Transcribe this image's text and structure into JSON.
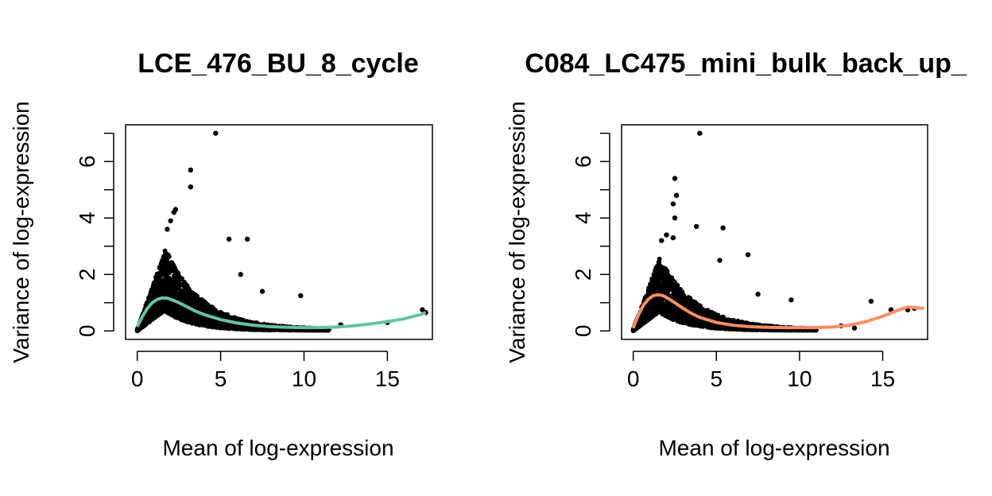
{
  "chart_data": [
    {
      "type": "scatter",
      "title": "LCE_476_BU_8_cycle",
      "xlabel": "Mean of log-expression",
      "ylabel": "Variance of log-expression",
      "xlim": [
        -0.7,
        17.7
      ],
      "ylim": [
        -0.3,
        7.3
      ],
      "x_ticks": [
        0,
        5,
        10,
        15
      ],
      "y_ticks": [
        0,
        1,
        2,
        3,
        4,
        5,
        6,
        7
      ],
      "y_tick_labels": [
        "0",
        "",
        "2",
        "",
        "4",
        "",
        "6",
        ""
      ],
      "grid": false,
      "points_color": "#000000",
      "trend_color": "#66c2a5",
      "cloud": {
        "x_max": 11.5,
        "peak_x": 1.7,
        "peak_upper": 2.9,
        "peak_lower": 0.75
      },
      "outliers": [
        [
          4.7,
          7.0
        ],
        [
          3.2,
          5.7
        ],
        [
          3.2,
          5.1
        ],
        [
          2.3,
          4.3
        ],
        [
          2.2,
          4.2
        ],
        [
          2.0,
          3.9
        ],
        [
          1.8,
          3.6
        ],
        [
          5.5,
          3.25
        ],
        [
          6.6,
          3.25
        ],
        [
          6.2,
          2.0
        ],
        [
          7.5,
          1.4
        ],
        [
          9.8,
          1.25
        ],
        [
          12.2,
          0.22
        ],
        [
          15.0,
          0.3
        ],
        [
          17.1,
          0.75
        ],
        [
          17.3,
          0.65
        ]
      ],
      "trend": {
        "x": [
          0,
          0.3,
          0.6,
          0.9,
          1.2,
          1.5,
          1.8,
          2.1,
          2.5,
          3.0,
          3.5,
          4.0,
          5.0,
          6.0,
          7.0,
          8.0,
          9.0,
          10.0,
          11.0,
          12.0,
          13.0,
          14.0,
          15.0,
          16.0,
          17.0,
          17.3
        ],
        "y": [
          0.15,
          0.5,
          0.8,
          1.0,
          1.12,
          1.17,
          1.16,
          1.1,
          1.0,
          0.85,
          0.7,
          0.58,
          0.4,
          0.28,
          0.2,
          0.15,
          0.13,
          0.12,
          0.12,
          0.14,
          0.18,
          0.25,
          0.33,
          0.43,
          0.58,
          0.65
        ]
      }
    },
    {
      "type": "scatter",
      "title": "C084_LC475_mini_bulk_back_up_",
      "xlabel": "Mean of log-expression",
      "ylabel": "Variance of log-expression",
      "xlim": [
        -0.7,
        17.7
      ],
      "ylim": [
        -0.3,
        7.3
      ],
      "x_ticks": [
        0,
        5,
        10,
        15
      ],
      "y_ticks": [
        0,
        1,
        2,
        3,
        4,
        5,
        6,
        7
      ],
      "y_tick_labels": [
        "0",
        "",
        "2",
        "",
        "4",
        "",
        "6",
        ""
      ],
      "grid": false,
      "points_color": "#000000",
      "trend_color": "#fc8d62",
      "cloud": {
        "x_max": 11.0,
        "peak_x": 1.6,
        "peak_upper": 2.6,
        "peak_lower": 0.7
      },
      "outliers": [
        [
          4.0,
          7.0
        ],
        [
          2.5,
          5.4
        ],
        [
          2.6,
          4.8
        ],
        [
          2.4,
          4.5
        ],
        [
          2.5,
          4.0
        ],
        [
          3.8,
          3.7
        ],
        [
          5.4,
          3.65
        ],
        [
          2.4,
          3.3
        ],
        [
          1.7,
          3.2
        ],
        [
          2.0,
          3.4
        ],
        [
          6.9,
          2.7
        ],
        [
          5.2,
          2.5
        ],
        [
          7.5,
          1.3
        ],
        [
          9.5,
          1.1
        ],
        [
          12.5,
          0.18
        ],
        [
          13.3,
          0.1
        ],
        [
          14.3,
          1.05
        ],
        [
          15.5,
          0.75
        ],
        [
          16.5,
          0.75
        ],
        [
          16.9,
          0.8
        ]
      ],
      "trend": {
        "x": [
          0,
          0.3,
          0.6,
          0.9,
          1.2,
          1.5,
          1.8,
          2.1,
          2.5,
          3.0,
          3.5,
          4.0,
          5.0,
          6.0,
          7.0,
          8.0,
          9.0,
          10.0,
          11.0,
          12.0,
          13.0,
          14.0,
          15.0,
          16.0,
          16.5,
          17.0,
          17.5
        ],
        "y": [
          0.1,
          0.55,
          0.9,
          1.12,
          1.25,
          1.28,
          1.25,
          1.15,
          1.0,
          0.8,
          0.62,
          0.48,
          0.3,
          0.2,
          0.15,
          0.13,
          0.12,
          0.12,
          0.12,
          0.14,
          0.2,
          0.33,
          0.52,
          0.75,
          0.85,
          0.82,
          0.8
        ]
      }
    }
  ]
}
